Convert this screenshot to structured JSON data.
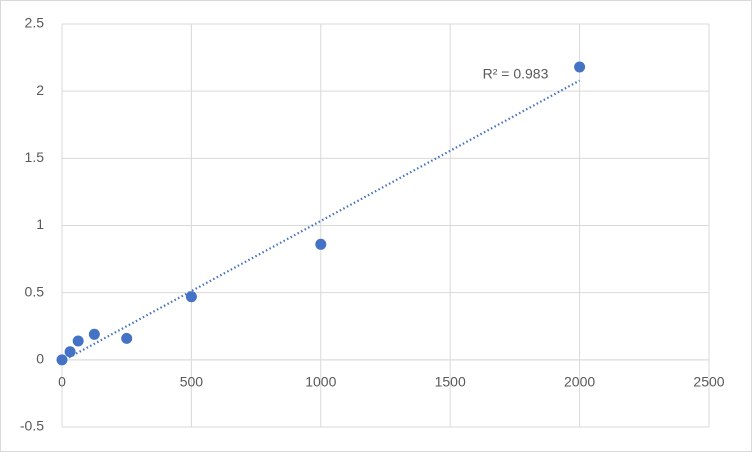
{
  "chart_data": {
    "type": "scatter",
    "x": [
      0,
      31.25,
      62.5,
      125,
      250,
      500,
      1000,
      2000
    ],
    "values": [
      0,
      0.06,
      0.14,
      0.19,
      0.16,
      0.47,
      0.86,
      2.18
    ],
    "color": "#4472c4",
    "trendline": "linear",
    "annotation": "R² = 0.983",
    "xlim": [
      0,
      2500
    ],
    "xticks": [
      0,
      500,
      1000,
      1500,
      2000,
      2500
    ],
    "ylim": [
      -0.5,
      2.5
    ],
    "yticks": [
      -0.5,
      0,
      0.5,
      1,
      1.5,
      2,
      2.5
    ],
    "grid": true
  }
}
